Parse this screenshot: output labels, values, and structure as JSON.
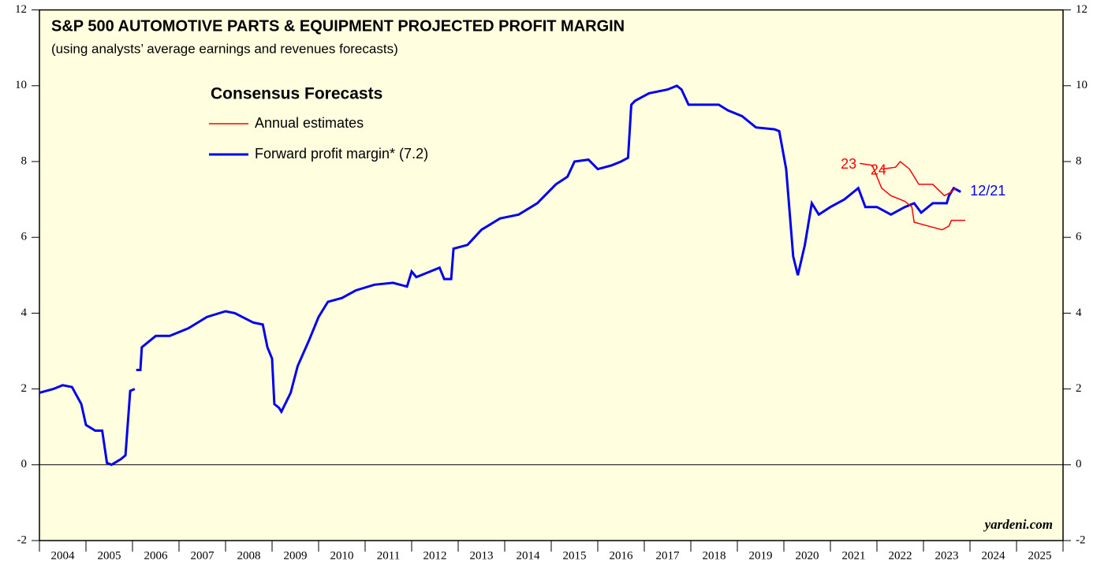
{
  "chart_data": {
    "type": "line",
    "title": "S&P 500 AUTOMOTIVE PARTS & EQUIPMENT PROJECTED PROFIT MARGIN",
    "subtitle": "(using analysts’ average earnings and revenues forecasts)",
    "legend": {
      "title": "Consensus Forecasts",
      "entries": [
        {
          "label": "Annual estimates",
          "color": "#ff0000"
        },
        {
          "label": "Forward profit margin* (7.2)",
          "color": "#0000ee"
        }
      ]
    },
    "annotation": "12/21",
    "source": "yardeni.com",
    "xlim": [
      2004,
      2026
    ],
    "xticks": [
      2004,
      2005,
      2006,
      2007,
      2008,
      2009,
      2010,
      2011,
      2012,
      2013,
      2014,
      2015,
      2016,
      2017,
      2018,
      2019,
      2020,
      2021,
      2022,
      2023,
      2024,
      2025
    ],
    "ylim": [
      -2,
      12
    ],
    "yticks": [
      -2,
      0,
      2,
      4,
      6,
      8,
      10,
      12
    ],
    "series": [
      {
        "name": "Forward profit margin* (7.2)",
        "color": "#0000ee",
        "x": [
          2004.0,
          2004.3,
          2004.5,
          2004.7,
          2004.9,
          2005.0,
          2005.2,
          2005.35,
          2005.45,
          2005.55,
          2005.75,
          2005.85,
          2005.95,
          2006.05,
          2006.06,
          2006.08,
          2006.17,
          2006.2,
          2006.5,
          2006.8,
          2007.2,
          2007.6,
          2008.0,
          2008.2,
          2008.6,
          2008.8,
          2008.9,
          2009.0,
          2009.05,
          2009.15,
          2009.2,
          2009.4,
          2009.55,
          2009.8,
          2010.0,
          2010.2,
          2010.5,
          2010.8,
          2011.2,
          2011.6,
          2011.9,
          2012.0,
          2012.1,
          2012.4,
          2012.6,
          2012.7,
          2012.85,
          2012.9,
          2013.2,
          2013.5,
          2013.9,
          2014.3,
          2014.7,
          2015.1,
          2015.35,
          2015.5,
          2015.8,
          2016.0,
          2016.3,
          2016.5,
          2016.65,
          2016.72,
          2016.8,
          2017.1,
          2017.5,
          2017.7,
          2017.8,
          2017.95,
          2018.3,
          2018.6,
          2018.8,
          2019.1,
          2019.4,
          2019.8,
          2019.9,
          2020.05,
          2020.2,
          2020.3,
          2020.45,
          2020.6,
          2020.75,
          2021.0,
          2021.3,
          2021.5,
          2021.6,
          2021.75,
          2022.0,
          2022.3,
          2022.6,
          2022.8,
          2022.95,
          2023.2,
          2023.5,
          2023.55,
          2023.65,
          2023.8
        ],
        "values": [
          1.9,
          2.0,
          2.1,
          2.05,
          1.6,
          1.05,
          0.9,
          0.9,
          0.05,
          0.0,
          0.15,
          0.25,
          1.95,
          2.0,
          null,
          2.5,
          2.5,
          3.1,
          3.4,
          3.4,
          3.6,
          3.9,
          4.05,
          4.0,
          3.75,
          3.7,
          3.1,
          2.8,
          1.6,
          1.5,
          1.4,
          1.9,
          2.6,
          3.3,
          3.9,
          4.3,
          4.4,
          4.6,
          4.75,
          4.8,
          4.7,
          5.1,
          4.95,
          5.1,
          5.2,
          4.9,
          4.9,
          5.7,
          5.8,
          6.2,
          6.5,
          6.6,
          6.9,
          7.4,
          7.6,
          8.0,
          8.05,
          7.8,
          7.9,
          8.0,
          8.1,
          9.5,
          9.6,
          9.8,
          9.9,
          10.0,
          9.9,
          9.5,
          9.5,
          9.5,
          9.35,
          9.2,
          8.9,
          8.85,
          8.8,
          7.8,
          5.5,
          5.0,
          5.8,
          6.9,
          6.6,
          6.8,
          7.0,
          7.2,
          7.3,
          6.8,
          6.8,
          6.6,
          6.8,
          6.9,
          6.65,
          6.9,
          6.9,
          7.1,
          7.3,
          7.2
        ]
      },
      {
        "name": "23",
        "color": "#ff0000",
        "x": [
          2021.63,
          2021.9,
          2022.0,
          2022.1,
          2022.3,
          2022.6,
          2022.75,
          2022.8,
          2023.1,
          2023.4,
          2023.55,
          2023.6,
          2023.9
        ],
        "values": [
          7.95,
          7.9,
          7.6,
          7.3,
          7.1,
          6.95,
          6.8,
          6.4,
          6.3,
          6.2,
          6.3,
          6.45,
          6.45
        ]
      },
      {
        "name": "24",
        "color": "#ff0000",
        "x": [
          2022.1,
          2022.4,
          2022.5,
          2022.7,
          2022.9,
          2023.2,
          2023.45,
          2023.6,
          2023.7
        ],
        "values": [
          7.8,
          7.85,
          8.0,
          7.8,
          7.4,
          7.4,
          7.1,
          7.2,
          7.3
        ]
      }
    ]
  }
}
